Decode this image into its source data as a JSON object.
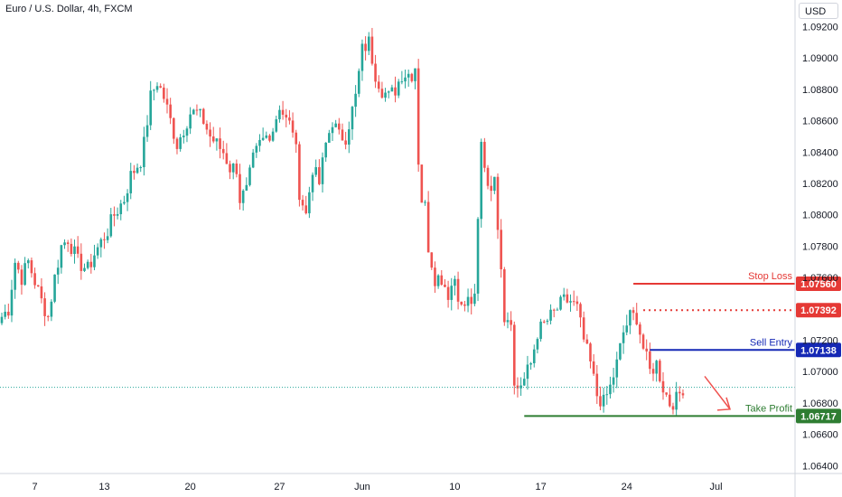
{
  "header": {
    "title": "Euro / U.S. Dollar, 4h, FXCM",
    "currency_button": "USD"
  },
  "colors": {
    "bull": "#26a69a",
    "bear": "#ef5350",
    "stop_loss": "#e53935",
    "entry_dotted": "#e53935",
    "sell_entry": "#1528b5",
    "take_profit": "#2e7d32",
    "current_price_line": "#26a69a",
    "arrow": "#ef5350"
  },
  "chart_data": {
    "type": "candlestick",
    "ylim": [
      1.0635,
      1.0937
    ],
    "y_ticks": [
      "1.09200",
      "1.09000",
      "1.08800",
      "1.08600",
      "1.08400",
      "1.08200",
      "1.08000",
      "1.07800",
      "1.07600",
      "1.07200",
      "1.07000",
      "1.06800",
      "1.06600",
      "1.06400"
    ],
    "y_tick_values": [
      1.092,
      1.09,
      1.088,
      1.086,
      1.084,
      1.082,
      1.08,
      1.078,
      1.076,
      1.072,
      1.07,
      1.068,
      1.066,
      1.064
    ],
    "x_ticks": [
      "7",
      "13",
      "20",
      "27",
      "Jun",
      "10",
      "17",
      "24",
      "Jul"
    ],
    "current_price": 1.069,
    "levels": [
      {
        "name": "Stop Loss",
        "value": 1.0756,
        "label": "1.07560",
        "style": "solid"
      },
      {
        "name": "",
        "value": 1.07392,
        "label": "1.07392",
        "style": "dotted"
      },
      {
        "name": "Sell Entry",
        "value": 1.07138,
        "label": "1.07138",
        "style": "solid"
      },
      {
        "name": "Take Profit",
        "value": 1.06717,
        "label": "1.06717",
        "style": "solid"
      }
    ],
    "keypoints": [
      [
        0,
        1.0735
      ],
      [
        2,
        1.074
      ],
      [
        4,
        1.077
      ],
      [
        6,
        1.076
      ],
      [
        8,
        1.077
      ],
      [
        12,
        1.0745
      ],
      [
        14,
        1.0735
      ],
      [
        16,
        1.076
      ],
      [
        18,
        1.078
      ],
      [
        20,
        1.0785
      ],
      [
        23,
        1.077
      ],
      [
        26,
        1.0765
      ],
      [
        28,
        1.0775
      ],
      [
        32,
        1.079
      ],
      [
        34,
        1.08
      ],
      [
        37,
        1.081
      ],
      [
        39,
        1.0825
      ],
      [
        42,
        1.0835
      ],
      [
        43,
        1.0845
      ],
      [
        45,
        1.0875
      ],
      [
        47,
        1.0885
      ],
      [
        49,
        1.0875
      ],
      [
        51,
        1.086
      ],
      [
        53,
        1.0845
      ],
      [
        55,
        1.0855
      ],
      [
        57,
        1.0865
      ],
      [
        59,
        1.0865
      ],
      [
        61,
        1.086
      ],
      [
        63,
        1.085
      ],
      [
        65,
        1.0845
      ],
      [
        67,
        1.084
      ],
      [
        69,
        1.083
      ],
      [
        71,
        1.083
      ],
      [
        72,
        1.081
      ],
      [
        74,
        1.0815
      ],
      [
        76,
        1.0835
      ],
      [
        78,
        1.0845
      ],
      [
        80,
        1.085
      ],
      [
        82,
        1.0855
      ],
      [
        84,
        1.087
      ],
      [
        86,
        1.086
      ],
      [
        88,
        1.0855
      ],
      [
        89,
        1.084
      ],
      [
        90,
        1.0815
      ],
      [
        92,
        1.08
      ],
      [
        94,
        1.083
      ],
      [
        96,
        1.082
      ],
      [
        98,
        1.0845
      ],
      [
        100,
        1.086
      ],
      [
        102,
        1.085
      ],
      [
        104,
        1.085
      ],
      [
        107,
        1.0875
      ],
      [
        109,
        1.0905
      ],
      [
        111,
        1.091
      ],
      [
        113,
        1.089
      ],
      [
        115,
        1.088
      ],
      [
        117,
        1.0875
      ],
      [
        119,
        1.088
      ],
      [
        121,
        1.089
      ],
      [
        124,
        1.089
      ],
      [
        125,
        1.0895
      ],
      [
        126,
        1.0835
      ],
      [
        127,
        1.081
      ],
      [
        128,
        1.0805
      ],
      [
        129,
        1.078
      ],
      [
        131,
        1.076
      ],
      [
        133,
        1.076
      ],
      [
        135,
        1.075
      ],
      [
        137,
        1.076
      ],
      [
        139,
        1.074
      ],
      [
        141,
        1.0745
      ],
      [
        143,
        1.0745
      ],
      [
        145,
        1.0845
      ],
      [
        147,
        1.082
      ],
      [
        149,
        1.082
      ],
      [
        151,
        1.077
      ],
      [
        152,
        1.0735
      ],
      [
        154,
        1.0735
      ],
      [
        155,
        1.069
      ],
      [
        156,
        1.069
      ],
      [
        158,
        1.0695
      ],
      [
        160,
        1.0705
      ],
      [
        162,
        1.0725
      ],
      [
        164,
        1.073
      ],
      [
        166,
        1.0735
      ],
      [
        168,
        1.074
      ],
      [
        170,
        1.0745
      ],
      [
        172,
        1.0745
      ],
      [
        174,
        1.074
      ],
      [
        176,
        1.072
      ],
      [
        178,
        1.0705
      ],
      [
        180,
        1.0685
      ],
      [
        182,
        1.068
      ],
      [
        184,
        1.069
      ],
      [
        186,
        1.0705
      ],
      [
        188,
        1.0725
      ],
      [
        190,
        1.0735
      ],
      [
        192,
        1.0735
      ],
      [
        194,
        1.0715
      ],
      [
        196,
        1.07
      ],
      [
        198,
        1.0705
      ],
      [
        200,
        1.069
      ],
      [
        202,
        1.068
      ],
      [
        204,
        1.0682
      ],
      [
        206,
        1.069
      ]
    ]
  }
}
